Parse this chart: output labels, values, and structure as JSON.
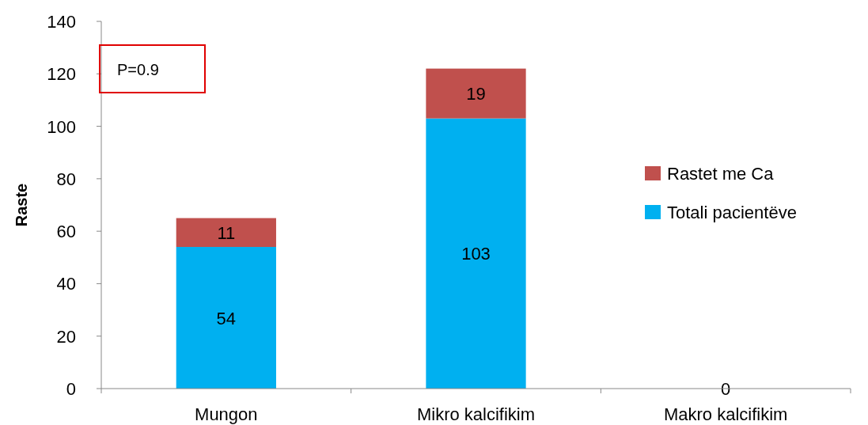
{
  "chart_data": {
    "type": "bar",
    "stacked": true,
    "ylabel": "Raste",
    "categories": [
      "Mungon",
      "Mikro kalcifikim",
      "Makro kalcifikim"
    ],
    "series": [
      {
        "name": "Totali pacientëve",
        "color": "#00b0f0",
        "values": [
          54,
          103,
          0
        ],
        "value_labels": [
          "54",
          "103",
          "0"
        ]
      },
      {
        "name": "Rastet me Ca",
        "color": "#c0504d",
        "values": [
          11,
          19,
          0
        ],
        "value_labels": [
          "11",
          "19",
          null
        ]
      }
    ],
    "ylim": [
      0,
      140
    ],
    "yticks": [
      0,
      20,
      40,
      60,
      80,
      100,
      120,
      140
    ],
    "legend": "right",
    "annotations": [
      "P=0.9"
    ]
  }
}
